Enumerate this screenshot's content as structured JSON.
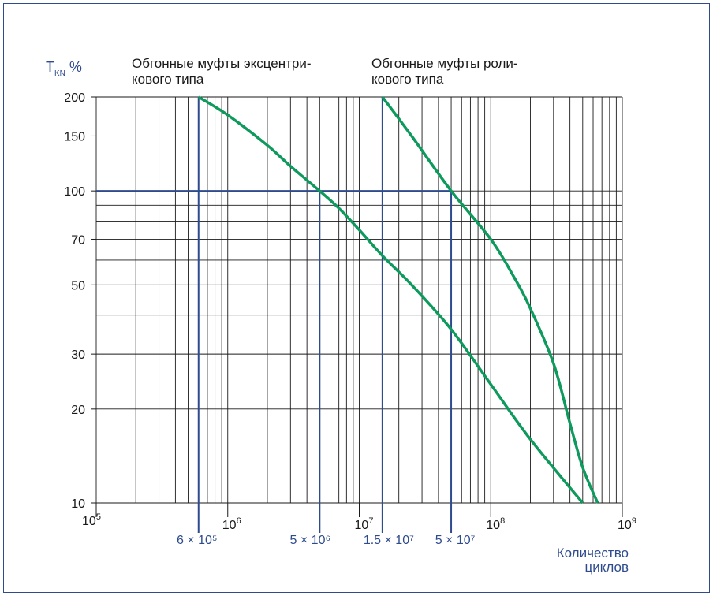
{
  "chart_data": {
    "type": "line",
    "x_scale": "log",
    "y_scale": "log",
    "xlim": [
      100000,
      1000000000
    ],
    "ylim": [
      10,
      200
    ],
    "grid": true,
    "y_axis_label": {
      "main": "T",
      "sub": "KN",
      "unit": "%"
    },
    "y_ticks": [
      {
        "value": 200,
        "label": "200"
      },
      {
        "value": 150,
        "label": "150"
      },
      {
        "value": 100,
        "label": "100"
      },
      {
        "value": 70,
        "label": "70"
      },
      {
        "value": 50,
        "label": "50"
      },
      {
        "value": 30,
        "label": "30"
      },
      {
        "value": 20,
        "label": "20"
      },
      {
        "value": 10,
        "label": "10"
      }
    ],
    "x_ticks": [
      {
        "value": 100000,
        "base": "10",
        "exp": "5"
      },
      {
        "value": 1000000,
        "base": "10",
        "exp": "6"
      },
      {
        "value": 10000000,
        "base": "10",
        "exp": "7"
      },
      {
        "value": 100000000,
        "base": "10",
        "exp": "8"
      },
      {
        "value": 1000000000,
        "base": "10",
        "exp": "9"
      }
    ],
    "x_axis_label": [
      "Количество",
      "циклов"
    ],
    "series_labels": [
      {
        "lines": [
          "Обгонные муфты эксцентри-",
          "кового типа"
        ]
      },
      {
        "lines": [
          "Обгонные муфты роли-",
          "кового типа"
        ]
      }
    ],
    "series": [
      {
        "points": [
          [
            600000,
            200
          ],
          [
            1000000,
            175
          ],
          [
            2000000,
            140
          ],
          [
            3000000,
            120
          ],
          [
            5000000,
            100
          ],
          [
            7000000,
            88
          ],
          [
            10000000,
            75
          ],
          [
            15000000,
            62
          ],
          [
            25000000,
            50
          ],
          [
            50000000,
            36
          ],
          [
            100000000,
            24
          ],
          [
            200000000,
            16
          ],
          [
            500000000,
            10
          ]
        ],
        "color": "#0e9a5c"
      },
      {
        "points": [
          [
            15000000,
            200
          ],
          [
            25000000,
            150
          ],
          [
            50000000,
            100
          ],
          [
            100000000,
            70
          ],
          [
            150000000,
            53
          ],
          [
            200000000,
            42
          ],
          [
            300000000,
            28
          ],
          [
            400000000,
            18
          ],
          [
            500000000,
            13
          ],
          [
            650000000,
            10
          ]
        ],
        "color": "#0e9a5c"
      }
    ],
    "reference_lines": {
      "horizontal": [
        100
      ],
      "vertical": [
        {
          "value": 600000,
          "label": "6 × 10⁵"
        },
        {
          "value": 5000000,
          "label": "5 × 10⁶"
        },
        {
          "value": 15000000,
          "label": "1.5 × 10⁷"
        },
        {
          "value": 50000000,
          "label": "5 × 10⁷"
        }
      ],
      "color": "#2e4b8e"
    },
    "grid_color": "#1a1a1a"
  }
}
